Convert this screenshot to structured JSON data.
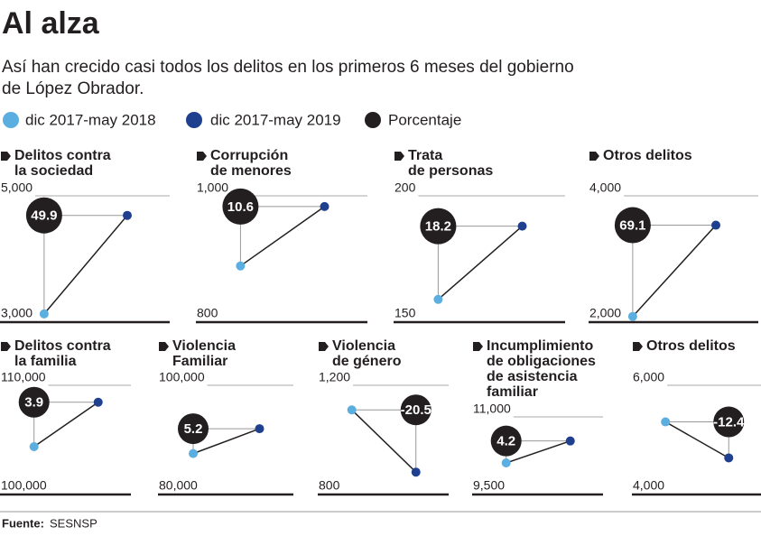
{
  "title": "Al alza",
  "subtitle": [
    "Así han crecido casi todos los delitos en los primeros 6 meses del gobierno",
    "de López Obrador."
  ],
  "legend": [
    {
      "name": "dic 2017-may 2018",
      "color": "#5aaee0"
    },
    {
      "name": "dic 2017-may 2019",
      "color": "#1f3f8f"
    },
    {
      "name": "Porcentaje",
      "color": "#231f20"
    }
  ],
  "source_label": "Fuente:",
  "source": "SESNSP",
  "chart_data": [
    {
      "type": "dot",
      "title": [
        "Delitos contra",
        "la sociedad"
      ],
      "ylim": [
        3000,
        5000
      ],
      "yticks": [
        {
          "value": 3000,
          "label": "3,000"
        },
        {
          "value": 5000,
          "label": "5,000"
        }
      ],
      "values": [
        3130,
        4690
      ],
      "change": 49.9
    },
    {
      "type": "dot",
      "title": [
        "Corrupción",
        "de menores"
      ],
      "ylim": [
        800,
        1000
      ],
      "yticks": [
        800,
        {
          "value": 1000,
          "label": "1,000"
        }
      ],
      "values": [
        889,
        983
      ],
      "change": 10.6
    },
    {
      "type": "dot",
      "title": [
        "Trata",
        "de personas"
      ],
      "ylim": [
        150,
        200
      ],
      "yticks": [
        150,
        200
      ],
      "values": [
        159,
        188
      ],
      "change": 18.2
    },
    {
      "type": "dot",
      "title": [
        "Otros delitos"
      ],
      "ylim": [
        2000,
        4000
      ],
      "yticks": [
        {
          "value": 2000,
          "label": "2,000"
        },
        {
          "value": 4000,
          "label": "4,000"
        }
      ],
      "values": [
        2090,
        3535
      ],
      "change": 69.1
    },
    {
      "type": "dot",
      "title": [
        "Delitos contra",
        "la familia"
      ],
      "ylim": [
        100000,
        110000
      ],
      "yticks": [
        {
          "value": 100000,
          "label": "100,000"
        },
        {
          "value": 110000,
          "label": "110,000"
        }
      ],
      "values": [
        104380,
        108450
      ],
      "change": 3.9
    },
    {
      "type": "dot",
      "title": [
        "Violencia",
        "Familiar"
      ],
      "ylim": [
        80000,
        100000
      ],
      "yticks": [
        {
          "value": 80000,
          "label": "80,000"
        },
        {
          "value": 100000,
          "label": "100,000"
        }
      ],
      "values": [
        87500,
        92050
      ],
      "change": 5.2
    },
    {
      "type": "dot",
      "title": [
        "Violencia",
        "de género"
      ],
      "ylim": [
        800,
        1200
      ],
      "yticks": [
        800,
        {
          "value": 1200,
          "label": "1,200"
        }
      ],
      "values": [
        1110,
        882
      ],
      "change": -20.5
    },
    {
      "type": "dot",
      "title": [
        "Incumplimiento",
        "de obligaciones",
        "de asistencia",
        "familiar"
      ],
      "ylim": [
        9500,
        11000
      ],
      "yticks": [
        {
          "value": 9500,
          "label": "9,500"
        },
        {
          "value": 11000,
          "label": "11,000"
        }
      ],
      "values": [
        10110,
        10535
      ],
      "change": 4.2
    },
    {
      "type": "dot",
      "title": [
        "Otros delitos"
      ],
      "ylim": [
        4000,
        6000
      ],
      "yticks": [
        {
          "value": 4000,
          "label": "4,000"
        },
        {
          "value": 6000,
          "label": "6,000"
        }
      ],
      "values": [
        5330,
        4670
      ],
      "change": -12.4
    }
  ]
}
